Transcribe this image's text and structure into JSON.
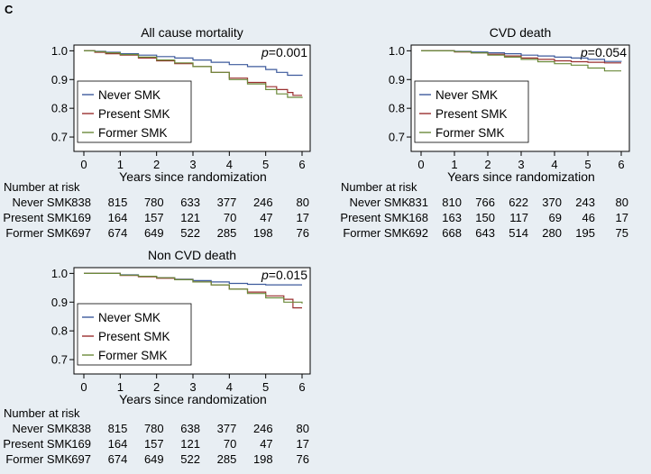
{
  "panel_letter": "C",
  "colors": {
    "never": "#3d5a9c",
    "present": "#9a2f2f",
    "former": "#6b8a3a",
    "background": "#e8eef3",
    "plot_bg": "#ffffff"
  },
  "chart_data": [
    {
      "type": "line",
      "title": "All cause mortality",
      "p_prefix": "p",
      "p_value": "=0.001",
      "xlabel": "Years since randomization",
      "ylabel": "",
      "xlim": [
        0,
        6
      ],
      "ylim": [
        0.65,
        1.02
      ],
      "xticks": [
        "0",
        "1",
        "2",
        "3",
        "4",
        "5",
        "6"
      ],
      "yticks": [
        "1.0",
        "0.9",
        "0.8",
        "0.7"
      ],
      "legend": [
        "Never SMK",
        "Present SMK",
        "Former SMK"
      ],
      "legend_position": "bottom-left",
      "series": [
        {
          "name": "Never SMK",
          "color_key": "never",
          "x": [
            0,
            0.3,
            0.6,
            1,
            1.5,
            2,
            2.5,
            3,
            3.5,
            4,
            4.5,
            5,
            5.3,
            5.6,
            6
          ],
          "y": [
            1,
            0.998,
            0.995,
            0.99,
            0.985,
            0.98,
            0.975,
            0.968,
            0.96,
            0.952,
            0.945,
            0.935,
            0.925,
            0.915,
            0.913
          ]
        },
        {
          "name": "Present SMK",
          "color_key": "present",
          "x": [
            0,
            0.3,
            0.6,
            1,
            1.5,
            2,
            2.5,
            3,
            3.5,
            4,
            4.5,
            5,
            5.3,
            5.6,
            5.75,
            6
          ],
          "y": [
            1,
            0.995,
            0.99,
            0.985,
            0.975,
            0.965,
            0.955,
            0.945,
            0.925,
            0.905,
            0.89,
            0.875,
            0.865,
            0.855,
            0.845,
            0.845
          ]
        },
        {
          "name": "Former SMK",
          "color_key": "former",
          "x": [
            0,
            0.3,
            0.6,
            1,
            1.5,
            2,
            2.5,
            3,
            3.5,
            4,
            4.5,
            5,
            5.3,
            5.6,
            6
          ],
          "y": [
            1,
            0.997,
            0.993,
            0.987,
            0.978,
            0.968,
            0.958,
            0.945,
            0.925,
            0.9,
            0.885,
            0.865,
            0.85,
            0.838,
            0.836
          ]
        }
      ],
      "risk_table": {
        "header": "Number at risk",
        "rows": [
          {
            "label": "Never SMK",
            "values": [
              "838",
              "815",
              "780",
              "633",
              "377",
              "246",
              "80"
            ]
          },
          {
            "label": "Present SMK",
            "values": [
              "169",
              "164",
              "157",
              "121",
              "70",
              "47",
              "17"
            ]
          },
          {
            "label": "Former SMK",
            "values": [
              "697",
              "674",
              "649",
              "522",
              "285",
              "198",
              "76"
            ]
          }
        ]
      }
    },
    {
      "type": "line",
      "title": "CVD death",
      "p_prefix": "p",
      "p_value": "=0.054",
      "xlabel": "Years since randomization",
      "ylabel": "",
      "xlim": [
        0,
        6
      ],
      "ylim": [
        0.65,
        1.02
      ],
      "xticks": [
        "0",
        "1",
        "2",
        "3",
        "4",
        "5",
        "6"
      ],
      "yticks": [
        "1.0",
        "0.9",
        "0.8",
        "0.7"
      ],
      "legend": [
        "Never SMK",
        "Present SMK",
        "Former SMK"
      ],
      "legend_position": "bottom-left",
      "series": [
        {
          "name": "Never SMK",
          "color_key": "never",
          "x": [
            0,
            1,
            1.5,
            2,
            2.5,
            3,
            3.5,
            4,
            4.5,
            5,
            5.5,
            6
          ],
          "y": [
            1,
            0.998,
            0.996,
            0.993,
            0.99,
            0.985,
            0.982,
            0.978,
            0.975,
            0.97,
            0.963,
            0.962
          ]
        },
        {
          "name": "Present SMK",
          "color_key": "present",
          "x": [
            0,
            1,
            1.5,
            2,
            2.5,
            3,
            3.5,
            4,
            4.5,
            5,
            5.5,
            6
          ],
          "y": [
            1,
            0.996,
            0.993,
            0.988,
            0.982,
            0.975,
            0.97,
            0.965,
            0.962,
            0.96,
            0.958,
            0.958
          ]
        },
        {
          "name": "Former SMK",
          "color_key": "former",
          "x": [
            0,
            1,
            1.5,
            2,
            2.5,
            3,
            3.5,
            4,
            4.5,
            5,
            5.5,
            6
          ],
          "y": [
            1,
            0.997,
            0.993,
            0.985,
            0.978,
            0.97,
            0.962,
            0.955,
            0.95,
            0.94,
            0.93,
            0.93
          ]
        }
      ],
      "risk_table": {
        "header": "Number at risk",
        "rows": [
          {
            "label": "Never SMK",
            "values": [
              "831",
              "810",
              "766",
              "622",
              "370",
              "243",
              "80"
            ]
          },
          {
            "label": "Present SMK",
            "values": [
              "168",
              "163",
              "150",
              "117",
              "69",
              "46",
              "17"
            ]
          },
          {
            "label": "Former SMK",
            "values": [
              "692",
              "668",
              "643",
              "514",
              "280",
              "195",
              "75"
            ]
          }
        ]
      }
    },
    {
      "type": "line",
      "title": "Non CVD death",
      "p_prefix": "p",
      "p_value": "=0.015",
      "xlabel": "Years since randomization",
      "ylabel": "",
      "xlim": [
        0,
        6
      ],
      "ylim": [
        0.65,
        1.02
      ],
      "xticks": [
        "0",
        "1",
        "2",
        "3",
        "4",
        "5",
        "6"
      ],
      "yticks": [
        "1.0",
        "0.9",
        "0.8",
        "0.7"
      ],
      "legend": [
        "Never SMK",
        "Present SMK",
        "Former SMK"
      ],
      "legend_position": "bottom-left",
      "series": [
        {
          "name": "Never SMK",
          "color_key": "never",
          "x": [
            0,
            1,
            1.5,
            2,
            2.5,
            3,
            3.5,
            4,
            4.5,
            5,
            5.5,
            6
          ],
          "y": [
            1,
            0.995,
            0.99,
            0.985,
            0.98,
            0.975,
            0.97,
            0.965,
            0.962,
            0.96,
            0.96,
            0.96
          ]
        },
        {
          "name": "Present SMK",
          "color_key": "present",
          "x": [
            0,
            1,
            1.5,
            2,
            2.5,
            3,
            3.5,
            4,
            4.5,
            5,
            5.5,
            5.75,
            6
          ],
          "y": [
            1,
            0.993,
            0.988,
            0.983,
            0.978,
            0.97,
            0.96,
            0.945,
            0.935,
            0.922,
            0.91,
            0.88,
            0.88
          ]
        },
        {
          "name": "Former SMK",
          "color_key": "former",
          "x": [
            0,
            1,
            1.5,
            2,
            2.5,
            3,
            3.5,
            4,
            4.5,
            5,
            5.5,
            6
          ],
          "y": [
            1,
            0.994,
            0.99,
            0.985,
            0.978,
            0.97,
            0.96,
            0.945,
            0.93,
            0.915,
            0.9,
            0.895
          ]
        }
      ],
      "risk_table": {
        "header": "Number at risk",
        "rows": [
          {
            "label": "Never SMK",
            "values": [
              "838",
              "815",
              "780",
              "638",
              "377",
              "246",
              "80"
            ]
          },
          {
            "label": "Present SMK",
            "values": [
              "169",
              "164",
              "157",
              "121",
              "70",
              "47",
              "17"
            ]
          },
          {
            "label": "Former SMK",
            "values": [
              "697",
              "674",
              "649",
              "522",
              "285",
              "198",
              "76"
            ]
          }
        ]
      }
    }
  ]
}
